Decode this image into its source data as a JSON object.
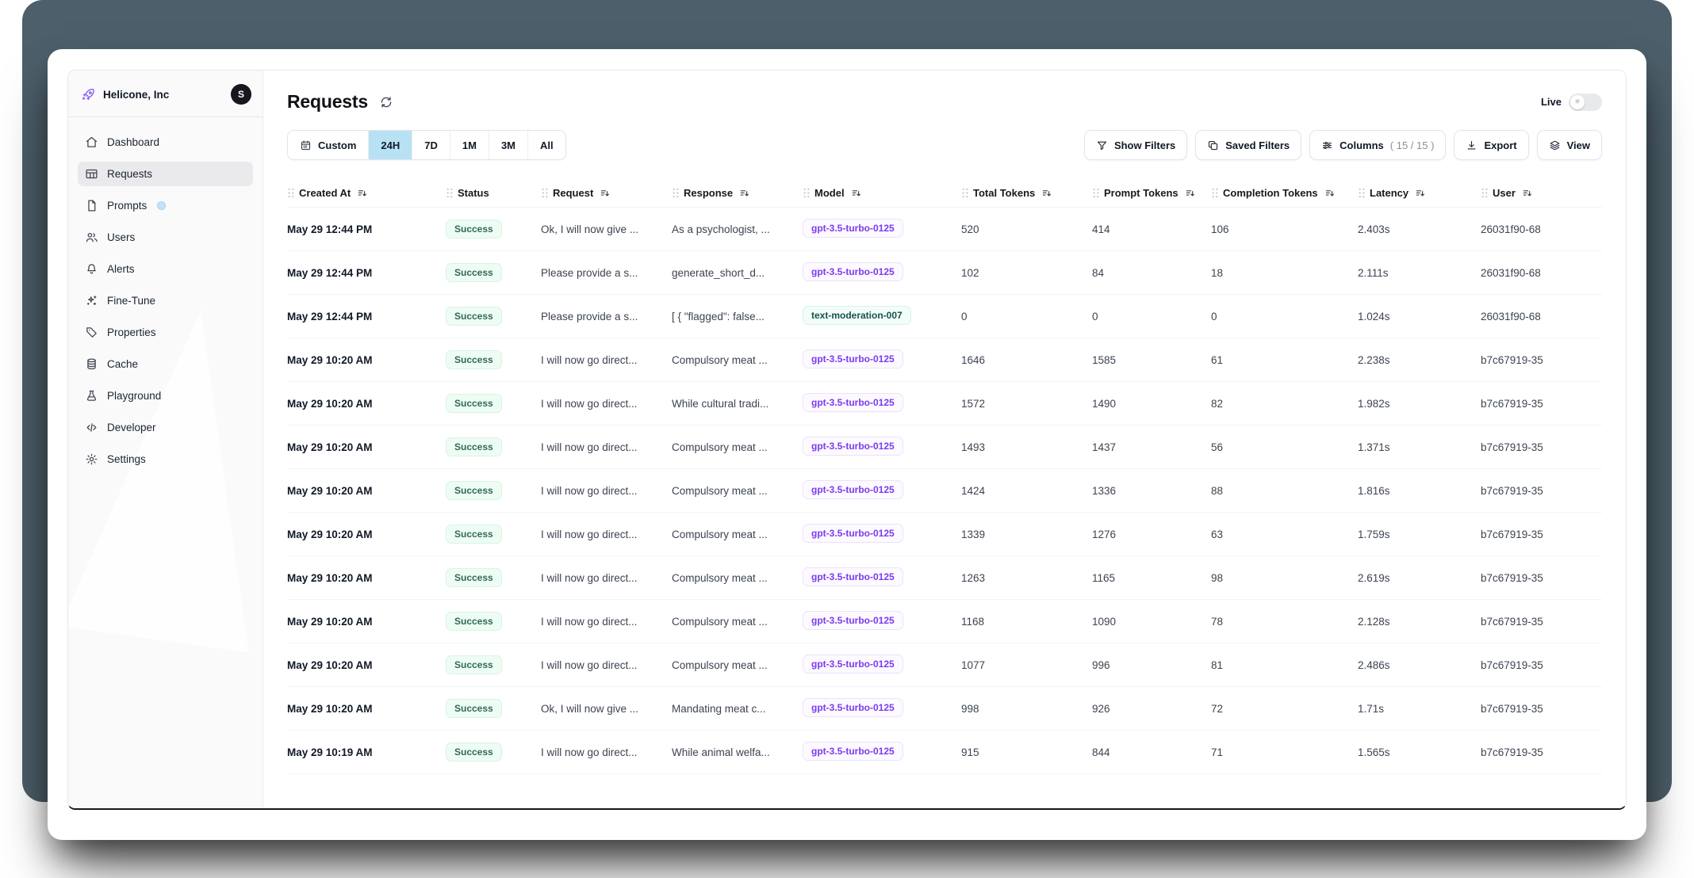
{
  "sidebar": {
    "org": {
      "name": "Helicone, Inc",
      "avatar_initial": "S",
      "logo_icon": "rocket-icon"
    },
    "items": [
      {
        "label": "Dashboard",
        "icon": "home-icon",
        "active": false
      },
      {
        "label": "Requests",
        "icon": "table-icon",
        "active": true
      },
      {
        "label": "Prompts",
        "icon": "document-icon",
        "active": false,
        "badge": true
      },
      {
        "label": "Users",
        "icon": "users-icon",
        "active": false
      },
      {
        "label": "Alerts",
        "icon": "bell-icon",
        "active": false
      },
      {
        "label": "Fine-Tune",
        "icon": "sparkles-icon",
        "active": false
      },
      {
        "label": "Properties",
        "icon": "tag-icon",
        "active": false
      },
      {
        "label": "Cache",
        "icon": "database-icon",
        "active": false
      },
      {
        "label": "Playground",
        "icon": "flask-icon",
        "active": false
      },
      {
        "label": "Developer",
        "icon": "code-icon",
        "active": false
      },
      {
        "label": "Settings",
        "icon": "gear-icon",
        "active": false
      }
    ]
  },
  "header": {
    "title": "Requests",
    "live_label": "Live",
    "live_on": false
  },
  "toolbar": {
    "time_ranges": [
      {
        "label": "Custom",
        "icon": "calendar-icon",
        "selected": false
      },
      {
        "label": "24H",
        "selected": true
      },
      {
        "label": "7D",
        "selected": false
      },
      {
        "label": "1M",
        "selected": false
      },
      {
        "label": "3M",
        "selected": false
      },
      {
        "label": "All",
        "selected": false
      }
    ],
    "actions": [
      {
        "label": "Show Filters",
        "icon": "funnel-icon"
      },
      {
        "label": "Saved Filters",
        "icon": "copy-icon"
      },
      {
        "label": "Columns",
        "icon": "sliders-icon",
        "count": "( 15 / 15 )"
      },
      {
        "label": "Export",
        "icon": "download-icon"
      },
      {
        "label": "View",
        "icon": "layers-icon"
      }
    ]
  },
  "table": {
    "columns": [
      {
        "label": "Created At",
        "sortable": true
      },
      {
        "label": "Status",
        "sortable": false
      },
      {
        "label": "Request",
        "sortable": true
      },
      {
        "label": "Response",
        "sortable": true
      },
      {
        "label": "Model",
        "sortable": true
      },
      {
        "label": "Total Tokens",
        "sortable": true
      },
      {
        "label": "Prompt Tokens",
        "sortable": true
      },
      {
        "label": "Completion Tokens",
        "sortable": true
      },
      {
        "label": "Latency",
        "sortable": true
      },
      {
        "label": "User",
        "sortable": true
      }
    ],
    "rows": [
      {
        "created_at": "May 29 12:44 PM",
        "status": "Success",
        "request": "Ok, I will now give ...",
        "response": "As a psychologist, ...",
        "model": "gpt-3.5-turbo-0125",
        "model_color": "purple",
        "total_tokens": "520",
        "prompt_tokens": "414",
        "completion_tokens": "106",
        "latency": "2.403s",
        "user": "26031f90-68"
      },
      {
        "created_at": "May 29 12:44 PM",
        "status": "Success",
        "request": "Please provide a s...",
        "response": "generate_short_d...",
        "model": "gpt-3.5-turbo-0125",
        "model_color": "purple",
        "total_tokens": "102",
        "prompt_tokens": "84",
        "completion_tokens": "18",
        "latency": "2.111s",
        "user": "26031f90-68"
      },
      {
        "created_at": "May 29 12:44 PM",
        "status": "Success",
        "request": "Please provide a s...",
        "response": "[ { \"flagged\": false...",
        "model": "text-moderation-007",
        "model_color": "teal",
        "total_tokens": "0",
        "prompt_tokens": "0",
        "completion_tokens": "0",
        "latency": "1.024s",
        "user": "26031f90-68"
      },
      {
        "created_at": "May 29 10:20 AM",
        "status": "Success",
        "request": "I will now go direct...",
        "response": "Compulsory meat ...",
        "model": "gpt-3.5-turbo-0125",
        "model_color": "purple",
        "total_tokens": "1646",
        "prompt_tokens": "1585",
        "completion_tokens": "61",
        "latency": "2.238s",
        "user": "b7c67919-35"
      },
      {
        "created_at": "May 29 10:20 AM",
        "status": "Success",
        "request": "I will now go direct...",
        "response": "While cultural tradi...",
        "model": "gpt-3.5-turbo-0125",
        "model_color": "purple",
        "total_tokens": "1572",
        "prompt_tokens": "1490",
        "completion_tokens": "82",
        "latency": "1.982s",
        "user": "b7c67919-35"
      },
      {
        "created_at": "May 29 10:20 AM",
        "status": "Success",
        "request": "I will now go direct...",
        "response": "Compulsory meat ...",
        "model": "gpt-3.5-turbo-0125",
        "model_color": "purple",
        "total_tokens": "1493",
        "prompt_tokens": "1437",
        "completion_tokens": "56",
        "latency": "1.371s",
        "user": "b7c67919-35"
      },
      {
        "created_at": "May 29 10:20 AM",
        "status": "Success",
        "request": "I will now go direct...",
        "response": "Compulsory meat ...",
        "model": "gpt-3.5-turbo-0125",
        "model_color": "purple",
        "total_tokens": "1424",
        "prompt_tokens": "1336",
        "completion_tokens": "88",
        "latency": "1.816s",
        "user": "b7c67919-35"
      },
      {
        "created_at": "May 29 10:20 AM",
        "status": "Success",
        "request": "I will now go direct...",
        "response": "Compulsory meat ...",
        "model": "gpt-3.5-turbo-0125",
        "model_color": "purple",
        "total_tokens": "1339",
        "prompt_tokens": "1276",
        "completion_tokens": "63",
        "latency": "1.759s",
        "user": "b7c67919-35"
      },
      {
        "created_at": "May 29 10:20 AM",
        "status": "Success",
        "request": "I will now go direct...",
        "response": "Compulsory meat ...",
        "model": "gpt-3.5-turbo-0125",
        "model_color": "purple",
        "total_tokens": "1263",
        "prompt_tokens": "1165",
        "completion_tokens": "98",
        "latency": "2.619s",
        "user": "b7c67919-35"
      },
      {
        "created_at": "May 29 10:20 AM",
        "status": "Success",
        "request": "I will now go direct...",
        "response": "Compulsory meat ...",
        "model": "gpt-3.5-turbo-0125",
        "model_color": "purple",
        "total_tokens": "1168",
        "prompt_tokens": "1090",
        "completion_tokens": "78",
        "latency": "2.128s",
        "user": "b7c67919-35"
      },
      {
        "created_at": "May 29 10:20 AM",
        "status": "Success",
        "request": "I will now go direct...",
        "response": "Compulsory meat ...",
        "model": "gpt-3.5-turbo-0125",
        "model_color": "purple",
        "total_tokens": "1077",
        "prompt_tokens": "996",
        "completion_tokens": "81",
        "latency": "2.486s",
        "user": "b7c67919-35"
      },
      {
        "created_at": "May 29 10:20 AM",
        "status": "Success",
        "request": "Ok, I will now give ...",
        "response": "Mandating meat c...",
        "model": "gpt-3.5-turbo-0125",
        "model_color": "purple",
        "total_tokens": "998",
        "prompt_tokens": "926",
        "completion_tokens": "72",
        "latency": "1.71s",
        "user": "b7c67919-35"
      },
      {
        "created_at": "May 29 10:19 AM",
        "status": "Success",
        "request": "I will now go direct...",
        "response": "While animal welfa...",
        "model": "gpt-3.5-turbo-0125",
        "model_color": "purple",
        "total_tokens": "915",
        "prompt_tokens": "844",
        "completion_tokens": "71",
        "latency": "1.565s",
        "user": "b7c67919-35"
      }
    ]
  },
  "colors": {
    "backdrop_slate": "#4d5f6a",
    "brand_purple": "#8b5cf6",
    "model_purple": "#7c3aed",
    "selected_range_blue": "#b9e1f4",
    "success_bg": "#edfdf4",
    "success_text": "#33685a",
    "sidebar_bg": "#fafafa",
    "active_item_bg": "#eaeaec"
  }
}
